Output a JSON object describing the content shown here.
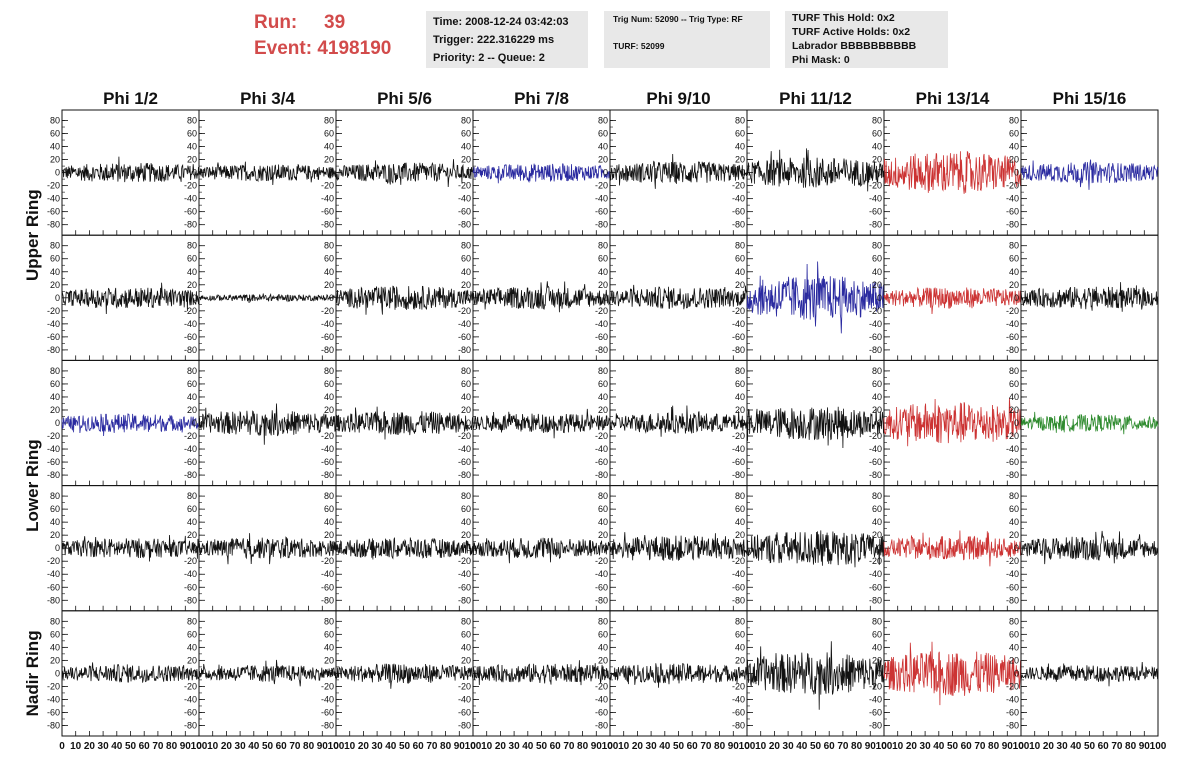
{
  "header": {
    "run_label": "Run:",
    "run_value": "39",
    "event_label": "Event:",
    "event_value": "4198190",
    "time": "Time: 2008-12-24 03:42:03",
    "trigger": "Trigger: 222.316229 ms",
    "priority": "Priority: 2 -- Queue: 2",
    "trig_num": "Trig Num: 52090 -- Trig Type: RF",
    "turf": "TURF: 52099",
    "turf_this_hold": "TURF This Hold: 0x2",
    "turf_active_holds": "TURF Active Holds: 0x2",
    "labrador": "Labrador BBBBBBBBBB",
    "phi_mask": "Phi Mask: 0"
  },
  "colors": {
    "header_red": "#d24b4b",
    "black": "#111111",
    "blue": "#2a2aa0",
    "red": "#cc3333",
    "green": "#2e8b2e",
    "box_grey": "#e8e8e8"
  },
  "chart_data": {
    "type": "line",
    "columns": [
      "Phi 1/2",
      "Phi 3/4",
      "Phi 5/6",
      "Phi 7/8",
      "Phi 9/10",
      "Phi 11/12",
      "Phi 13/14",
      "Phi 15/16"
    ],
    "ring_labels": [
      "Upper Ring",
      "Lower Ring",
      "Nadir Ring"
    ],
    "y_ticks": [
      80,
      60,
      40,
      20,
      0,
      -20,
      -40,
      -60,
      -80
    ],
    "x_ticks": [
      0,
      10,
      20,
      30,
      40,
      50,
      60,
      70,
      80,
      90,
      100
    ],
    "x_tick_labels_shown": [
      "0",
      "10",
      "20",
      "30",
      "40",
      "50",
      "60",
      "70",
      "80",
      "90",
      "100"
    ],
    "xlim": [
      0,
      100
    ],
    "ylim": [
      -90,
      90
    ],
    "panel_rows": [
      {
        "panels": [
          {
            "color": "black",
            "amp": 14
          },
          {
            "color": "black",
            "amp": 12
          },
          {
            "color": "black",
            "amp": 14
          },
          {
            "color": "blue",
            "amp": 13
          },
          {
            "color": "black",
            "amp": 16
          },
          {
            "color": "black",
            "amp": 22
          },
          {
            "color": "red",
            "amp": 30
          },
          {
            "color": "blue",
            "amp": 15
          }
        ]
      },
      {
        "panels": [
          {
            "color": "black",
            "amp": 15
          },
          {
            "color": "black",
            "amp": 5
          },
          {
            "color": "black",
            "amp": 17
          },
          {
            "color": "black",
            "amp": 16
          },
          {
            "color": "black",
            "amp": 16
          },
          {
            "color": "blue",
            "amp": 32
          },
          {
            "color": "red",
            "amp": 15
          },
          {
            "color": "black",
            "amp": 16
          }
        ]
      },
      {
        "panels": [
          {
            "color": "blue",
            "amp": 13
          },
          {
            "color": "black",
            "amp": 18
          },
          {
            "color": "black",
            "amp": 17
          },
          {
            "color": "black",
            "amp": 14
          },
          {
            "color": "black",
            "amp": 15
          },
          {
            "color": "black",
            "amp": 24
          },
          {
            "color": "red",
            "amp": 30
          },
          {
            "color": "green",
            "amp": 12
          }
        ]
      },
      {
        "panels": [
          {
            "color": "black",
            "amp": 14
          },
          {
            "color": "black",
            "amp": 15
          },
          {
            "color": "black",
            "amp": 15
          },
          {
            "color": "black",
            "amp": 15
          },
          {
            "color": "black",
            "amp": 18
          },
          {
            "color": "black",
            "amp": 25
          },
          {
            "color": "red",
            "amp": 17
          },
          {
            "color": "black",
            "amp": 17
          }
        ]
      },
      {
        "panels": [
          {
            "color": "black",
            "amp": 13
          },
          {
            "color": "black",
            "amp": 12
          },
          {
            "color": "black",
            "amp": 14
          },
          {
            "color": "black",
            "amp": 14
          },
          {
            "color": "black",
            "amp": 14
          },
          {
            "color": "black",
            "amp": 30
          },
          {
            "color": "red",
            "amp": 32
          },
          {
            "color": "black",
            "amp": 12
          }
        ]
      }
    ]
  }
}
